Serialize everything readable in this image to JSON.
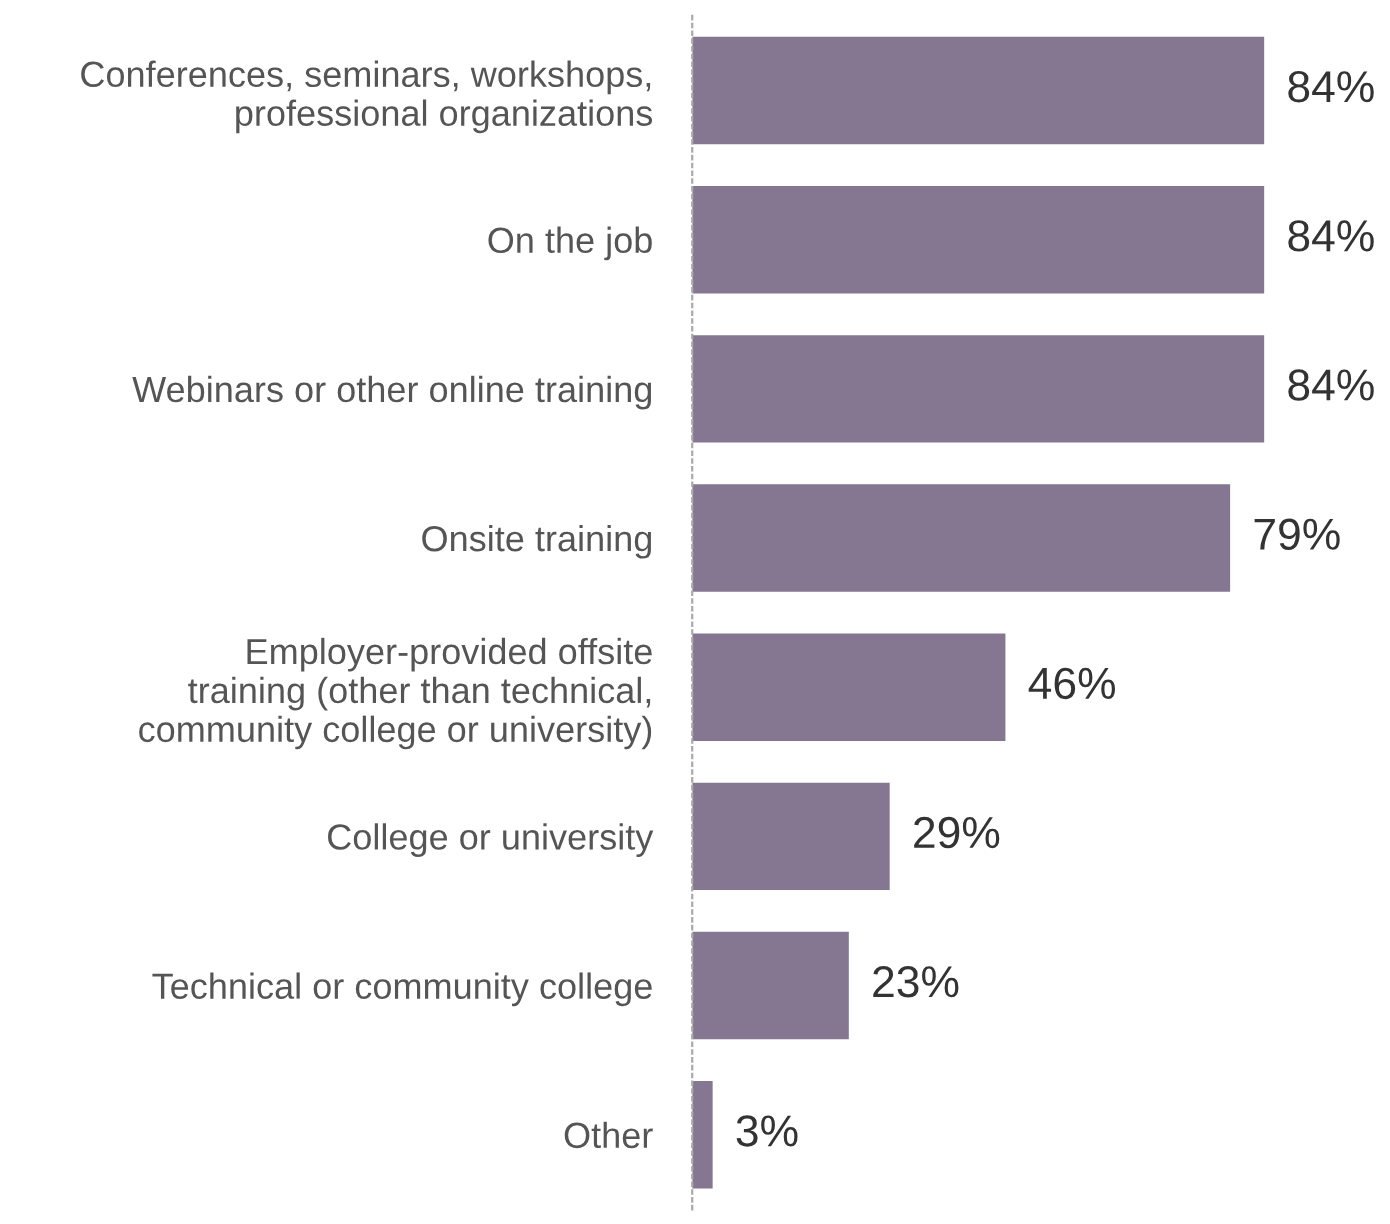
{
  "chart_data": {
    "type": "bar",
    "orientation": "horizontal",
    "categories": [
      "Conferences, seminars, workshops,\nprofessional organizations",
      "On the job",
      "Webinars or other online training",
      "Onsite training",
      "Employer-provided offsite\ntraining (other than technical,\ncommunity college or university)",
      "College or university",
      "Technical or community college",
      "Other"
    ],
    "values": [
      84,
      84,
      84,
      79,
      46,
      29,
      23,
      3
    ],
    "value_labels": [
      "84%",
      "84%",
      "84%",
      "79%",
      "46%",
      "29%",
      "23%",
      "3%"
    ],
    "color": "#857791",
    "grid": false,
    "legend": false
  }
}
